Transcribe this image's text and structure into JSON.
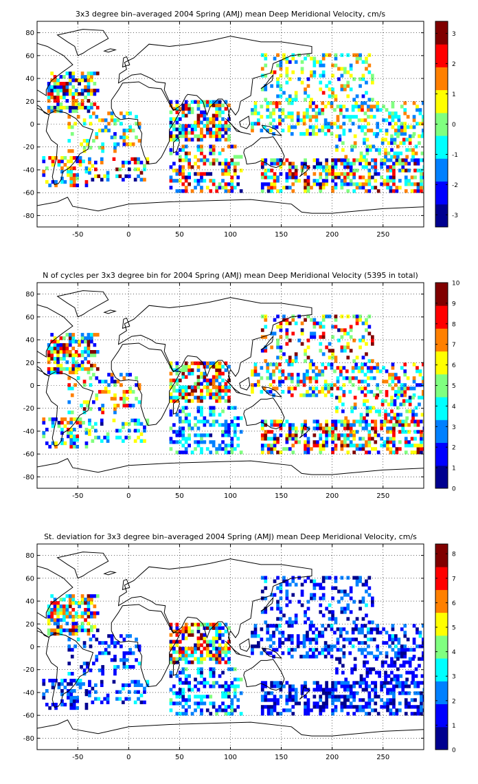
{
  "chart_data": [
    {
      "type": "heatmap",
      "title": "3x3 degree bin–averaged 2004 Spring (AMJ) mean Deep Meridional Velocity, cm/s",
      "xlim": [
        -90,
        290
      ],
      "ylim": [
        -90,
        90
      ],
      "xticks": [
        "-50",
        "0",
        "50",
        "100",
        "150",
        "200",
        "250"
      ],
      "yticks": [
        "80",
        "60",
        "40",
        "20",
        "0",
        "-20",
        "-40",
        "-60",
        "-80"
      ],
      "grid": true,
      "colorbar": {
        "clim": [
          -3.4,
          3.4
        ],
        "ticks": [
          "3",
          "2",
          "1",
          "0",
          "-1",
          "-2",
          "-3"
        ]
      },
      "colormap": [
        "#00008f",
        "#0000ff",
        "#0080ff",
        "#00ffff",
        "#80ff80",
        "#ffff00",
        "#ff8000",
        "#ff0000",
        "#800000"
      ],
      "regions": [
        {
          "x": [
            -80,
            -30
          ],
          "y": [
            10,
            45
          ],
          "density": 0.6,
          "range": [
            -3.2,
            3.2
          ]
        },
        {
          "x": [
            -85,
            -40
          ],
          "y": [
            -55,
            -30
          ],
          "density": 0.45,
          "range": [
            -2.5,
            2.5
          ]
        },
        {
          "x": [
            -60,
            10
          ],
          "y": [
            -25,
            10
          ],
          "density": 0.25,
          "range": [
            -2,
            2
          ]
        },
        {
          "x": [
            -40,
            20
          ],
          "y": [
            -50,
            -30
          ],
          "density": 0.3,
          "range": [
            -3,
            3
          ]
        },
        {
          "x": [
            40,
            100
          ],
          "y": [
            -15,
            20
          ],
          "density": 0.65,
          "range": [
            -3,
            3
          ]
        },
        {
          "x": [
            40,
            110
          ],
          "y": [
            -60,
            -20
          ],
          "density": 0.4,
          "range": [
            -3,
            3
          ]
        },
        {
          "x": [
            130,
            290
          ],
          "y": [
            -60,
            -30
          ],
          "density": 0.55,
          "range": [
            -3,
            3
          ]
        },
        {
          "x": [
            120,
            290
          ],
          "y": [
            -10,
            20
          ],
          "density": 0.4,
          "range": [
            -2,
            2
          ]
        },
        {
          "x": [
            130,
            240
          ],
          "y": [
            20,
            60
          ],
          "density": 0.3,
          "range": [
            -2,
            2
          ]
        },
        {
          "x": [
            200,
            290
          ],
          "y": [
            -30,
            -10
          ],
          "density": 0.35,
          "range": [
            -2,
            2
          ]
        }
      ]
    },
    {
      "type": "heatmap",
      "title": "N of cycles per 3x3 degree bin for 2004 Spring (AMJ) mean Deep Meridional Velocity (5395 in total)",
      "xlim": [
        -90,
        290
      ],
      "ylim": [
        -90,
        90
      ],
      "xticks": [
        "-50",
        "0",
        "50",
        "100",
        "150",
        "200",
        "250"
      ],
      "yticks": [
        "80",
        "60",
        "40",
        "20",
        "0",
        "-20",
        "-40",
        "-60",
        "-80"
      ],
      "grid": true,
      "colorbar": {
        "clim": [
          0,
          10
        ],
        "ticks": [
          "10",
          "9",
          "8",
          "7",
          "6",
          "5",
          "4",
          "3",
          "2",
          "1",
          "0"
        ]
      },
      "colormap": [
        "#00008f",
        "#0000ff",
        "#0080ff",
        "#00ffff",
        "#80ff80",
        "#ffff00",
        "#ff8000",
        "#ff0000",
        "#800000"
      ],
      "regions": [
        {
          "x": [
            -80,
            -30
          ],
          "y": [
            10,
            45
          ],
          "density": 0.6,
          "range": [
            1,
            10
          ]
        },
        {
          "x": [
            -85,
            -40
          ],
          "y": [
            -55,
            -30
          ],
          "density": 0.45,
          "range": [
            1,
            8
          ]
        },
        {
          "x": [
            -60,
            10
          ],
          "y": [
            -25,
            10
          ],
          "density": 0.25,
          "range": [
            1,
            9
          ]
        },
        {
          "x": [
            -40,
            20
          ],
          "y": [
            -50,
            -30
          ],
          "density": 0.3,
          "range": [
            1,
            6
          ]
        },
        {
          "x": [
            40,
            100
          ],
          "y": [
            -15,
            20
          ],
          "density": 0.65,
          "range": [
            2,
            10
          ]
        },
        {
          "x": [
            40,
            110
          ],
          "y": [
            -60,
            -20
          ],
          "density": 0.4,
          "range": [
            1,
            5
          ]
        },
        {
          "x": [
            130,
            290
          ],
          "y": [
            -60,
            -30
          ],
          "density": 0.55,
          "range": [
            1,
            10
          ]
        },
        {
          "x": [
            120,
            290
          ],
          "y": [
            -10,
            20
          ],
          "density": 0.4,
          "range": [
            1,
            9
          ]
        },
        {
          "x": [
            130,
            240
          ],
          "y": [
            20,
            60
          ],
          "density": 0.3,
          "range": [
            1,
            10
          ]
        },
        {
          "x": [
            200,
            290
          ],
          "y": [
            -30,
            -10
          ],
          "density": 0.35,
          "range": [
            1,
            9
          ]
        }
      ]
    },
    {
      "type": "heatmap",
      "title": "St. deviation for 3x3 degree bin–averaged 2004 Spring (AMJ) mean Deep Meridional Velocity, cm/s",
      "xlim": [
        -90,
        290
      ],
      "ylim": [
        -90,
        90
      ],
      "xticks": [
        "-50",
        "0",
        "50",
        "100",
        "150",
        "200",
        "250"
      ],
      "yticks": [
        "80",
        "60",
        "40",
        "20",
        "0",
        "-20",
        "-40",
        "-60",
        "-80"
      ],
      "grid": true,
      "colorbar": {
        "clim": [
          0,
          8.4
        ],
        "ticks": [
          "8",
          "7",
          "6",
          "5",
          "4",
          "3",
          "2",
          "1",
          "0"
        ]
      },
      "colormap": [
        "#00008f",
        "#0000ff",
        "#0080ff",
        "#00ffff",
        "#80ff80",
        "#ffff00",
        "#ff8000",
        "#ff0000",
        "#800000"
      ],
      "regions": [
        {
          "x": [
            -80,
            -30
          ],
          "y": [
            10,
            45
          ],
          "density": 0.6,
          "range": [
            0.5,
            8
          ]
        },
        {
          "x": [
            -85,
            -40
          ],
          "y": [
            -55,
            -30
          ],
          "density": 0.45,
          "range": [
            0.5,
            3
          ]
        },
        {
          "x": [
            -60,
            10
          ],
          "y": [
            -25,
            10
          ],
          "density": 0.25,
          "range": [
            0.5,
            3
          ]
        },
        {
          "x": [
            -40,
            20
          ],
          "y": [
            -50,
            -30
          ],
          "density": 0.3,
          "range": [
            0.5,
            3
          ]
        },
        {
          "x": [
            40,
            100
          ],
          "y": [
            -15,
            20
          ],
          "density": 0.65,
          "range": [
            0.5,
            8
          ]
        },
        {
          "x": [
            40,
            110
          ],
          "y": [
            -60,
            -20
          ],
          "density": 0.4,
          "range": [
            0.5,
            4
          ]
        },
        {
          "x": [
            130,
            290
          ],
          "y": [
            -60,
            -30
          ],
          "density": 0.55,
          "range": [
            0.3,
            2.5
          ]
        },
        {
          "x": [
            120,
            290
          ],
          "y": [
            -10,
            20
          ],
          "density": 0.4,
          "range": [
            0.3,
            3
          ]
        },
        {
          "x": [
            130,
            240
          ],
          "y": [
            20,
            60
          ],
          "density": 0.3,
          "range": [
            0.3,
            3
          ]
        },
        {
          "x": [
            200,
            290
          ],
          "y": [
            -30,
            -10
          ],
          "density": 0.35,
          "range": [
            0.3,
            2
          ]
        }
      ]
    }
  ]
}
